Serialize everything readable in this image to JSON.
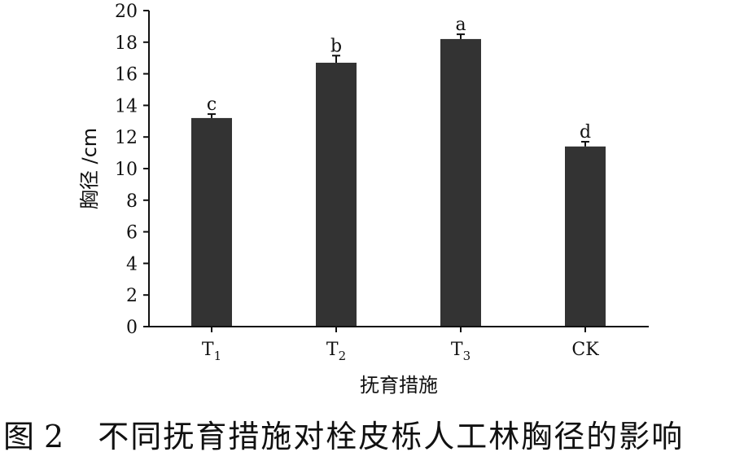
{
  "chart_data": {
    "type": "bar",
    "categories": [
      {
        "base": "T",
        "sub": "1"
      },
      {
        "base": "T",
        "sub": "2"
      },
      {
        "base": "T",
        "sub": "3"
      },
      {
        "base": "CK",
        "sub": ""
      }
    ],
    "values": [
      13.2,
      16.7,
      18.2,
      11.4
    ],
    "errors": [
      0.25,
      0.45,
      0.3,
      0.3
    ],
    "significance": [
      "c",
      "b",
      "a",
      "d"
    ],
    "ylabel": "胸径 /cm",
    "xlabel": "抚育措施",
    "ylim": [
      0,
      20
    ],
    "yticks": [
      0,
      2,
      4,
      6,
      8,
      10,
      12,
      14,
      16,
      18,
      20
    ],
    "bar_color": "#333333",
    "grid": false,
    "legend": "none"
  },
  "caption": {
    "label": "图",
    "number": "2",
    "title": "不同抚育措施对栓皮栎人工林胸径的影响"
  }
}
